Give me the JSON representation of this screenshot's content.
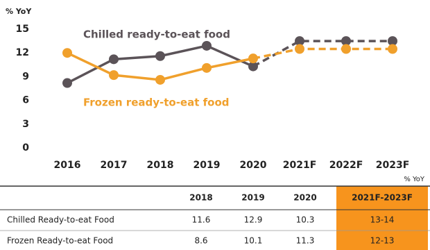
{
  "chart_data": {
    "type": "line",
    "y_unit": "% YoY",
    "categories": [
      "2016",
      "2017",
      "2018",
      "2019",
      "2020",
      "2021F",
      "2022F",
      "2023F"
    ],
    "series": [
      {
        "name": "Chilled ready-to-eat food",
        "color": "#5b5358",
        "values": [
          8.2,
          11.2,
          11.6,
          12.9,
          10.3,
          13.5,
          13.5,
          13.5
        ]
      },
      {
        "name": "Frozen ready-to-eat food",
        "color": "#f0a02c",
        "values": [
          12,
          9.2,
          8.6,
          10.1,
          11.3,
          12.5,
          12.5,
          12.5
        ]
      }
    ],
    "dashed_from": "2020",
    "ylim": [
      0,
      15
    ],
    "yticks": [
      0,
      3,
      6,
      9,
      12,
      15
    ],
    "grid": false
  },
  "table": {
    "unit": "% YoY",
    "columns": [
      "2018",
      "2019",
      "2020",
      "2021F-2023F"
    ],
    "rows": [
      {
        "label": "Chilled Ready-to-eat Food",
        "cells": [
          "11.6",
          "12.9",
          "10.3",
          "13-14"
        ]
      },
      {
        "label": "Frozen Ready-to-eat Food",
        "cells": [
          "8.6",
          "10.1",
          "11.3",
          "12-13"
        ]
      }
    ]
  }
}
